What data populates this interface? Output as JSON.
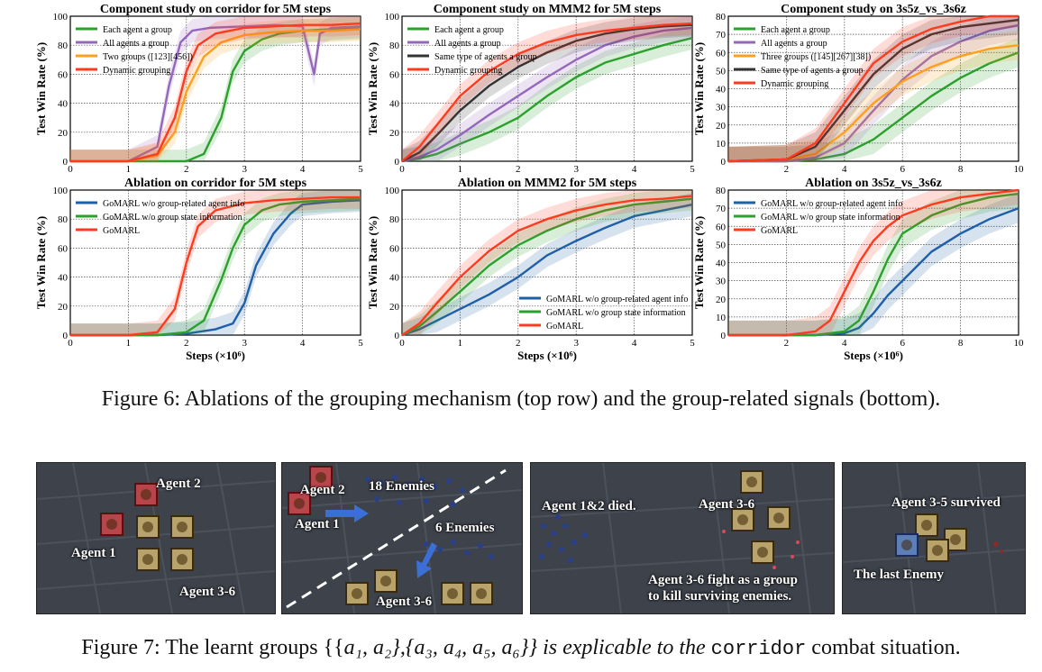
{
  "figure6": {
    "caption": "Figure 6: Ablations of the grouping mechanism (top row) and the group-related signals (bottom).",
    "xlabel": "Steps (×10⁶)",
    "ylabel": "Test Win Rate (%)"
  },
  "chart_data": [
    {
      "type": "line",
      "title": "Component study on corridor for 5M steps",
      "xlabel": "Steps (×10⁶)",
      "ylabel": "Test Win Rate (%)",
      "xlim": [
        0,
        5
      ],
      "ylim": [
        0,
        100
      ],
      "xticks": [
        "0",
        "1",
        "2",
        "3",
        "4",
        "5"
      ],
      "yticks": [
        "0",
        "20",
        "40",
        "60",
        "80",
        "100"
      ],
      "grid": true,
      "legend": "top-left",
      "series": [
        {
          "name": "Each agent a group",
          "color": "#2ca02c",
          "x": [
            0,
            0.5,
            1,
            1.5,
            2,
            2.3,
            2.6,
            2.8,
            3,
            3.3,
            3.6,
            4,
            4.5,
            5
          ],
          "values": [
            0,
            0,
            0,
            0,
            0,
            5,
            30,
            62,
            76,
            84,
            88,
            90,
            91,
            92
          ]
        },
        {
          "name": "All agents a group",
          "color": "#9467bd",
          "x": [
            0,
            0.5,
            1,
            1.5,
            1.7,
            1.9,
            2.1,
            2.4,
            3,
            3.5,
            4,
            4.2,
            4.3,
            4.5,
            5
          ],
          "values": [
            0,
            0,
            0,
            10,
            52,
            82,
            90,
            92,
            93,
            94,
            93,
            60,
            88,
            92,
            93
          ]
        },
        {
          "name": "Two groups ([123][456])",
          "color": "#ff9f1c",
          "x": [
            0,
            0.5,
            1,
            1.5,
            1.8,
            2,
            2.3,
            2.6,
            3,
            3.5,
            4,
            4.5,
            5
          ],
          "values": [
            0,
            0,
            0,
            4,
            20,
            48,
            72,
            82,
            87,
            89,
            90,
            90,
            91
          ]
        },
        {
          "name": "Dynamic grouping",
          "color": "#ff3b1f",
          "x": [
            0,
            0.5,
            1,
            1.5,
            1.8,
            2,
            2.2,
            2.5,
            3,
            3.5,
            4,
            4.5,
            5
          ],
          "values": [
            0,
            0,
            0,
            5,
            30,
            62,
            80,
            88,
            92,
            93,
            94,
            94,
            95
          ]
        }
      ]
    },
    {
      "type": "line",
      "title": "Component study on MMM2 for 5M steps",
      "xlabel": "Steps (×10⁶)",
      "ylabel": "Test Win Rate (%)",
      "xlim": [
        0,
        5
      ],
      "ylim": [
        0,
        100
      ],
      "xticks": [
        "0",
        "1",
        "2",
        "3",
        "4",
        "5"
      ],
      "yticks": [
        "0",
        "20",
        "40",
        "60",
        "80",
        "100"
      ],
      "grid": true,
      "legend": "top-left",
      "series": [
        {
          "name": "Each agent a group",
          "color": "#2ca02c",
          "x": [
            0,
            0.3,
            0.6,
            1,
            1.5,
            2,
            2.5,
            3,
            3.5,
            4,
            4.5,
            5
          ],
          "values": [
            0,
            2,
            5,
            12,
            20,
            30,
            45,
            58,
            68,
            74,
            80,
            85
          ]
        },
        {
          "name": "All agents a group",
          "color": "#9467bd",
          "x": [
            0,
            0.3,
            0.6,
            1,
            1.5,
            2,
            2.5,
            3,
            3.5,
            4,
            4.5,
            5
          ],
          "values": [
            0,
            3,
            8,
            18,
            32,
            45,
            58,
            70,
            80,
            86,
            90,
            92
          ]
        },
        {
          "name": "Same type of agents a group",
          "color": "#333333",
          "x": [
            0,
            0.3,
            0.6,
            1,
            1.5,
            2,
            2.5,
            3,
            3.5,
            4,
            4.5,
            5
          ],
          "values": [
            0,
            6,
            18,
            35,
            52,
            65,
            75,
            83,
            88,
            91,
            93,
            94
          ]
        },
        {
          "name": "Dynamic grouping",
          "color": "#ff3b1f",
          "x": [
            0,
            0.3,
            0.6,
            1,
            1.5,
            2,
            2.5,
            3,
            3.5,
            4,
            4.5,
            5
          ],
          "values": [
            0,
            10,
            25,
            45,
            62,
            74,
            82,
            87,
            90,
            92,
            94,
            95
          ]
        }
      ]
    },
    {
      "type": "line",
      "title": "Component study on 3s5z_vs_3s6z",
      "xlabel": "Steps (×10⁶)",
      "ylabel": "Test Win Rate (%)",
      "xlim": [
        0,
        10
      ],
      "ylim": [
        0,
        80
      ],
      "xticks": [
        "",
        "2",
        "4",
        "6",
        "8",
        "10"
      ],
      "yticks": [
        "0",
        "10",
        "20",
        "30",
        "40",
        "50",
        "60",
        "70",
        "80"
      ],
      "grid": true,
      "legend": "top-left",
      "series": [
        {
          "name": "Each agent a group",
          "color": "#2ca02c",
          "x": [
            0,
            2,
            3,
            4,
            5,
            6,
            7,
            8,
            9,
            10
          ],
          "values": [
            0,
            0,
            1,
            4,
            12,
            24,
            36,
            46,
            54,
            60
          ]
        },
        {
          "name": "All agents a group",
          "color": "#9467bd",
          "x": [
            0,
            2,
            3,
            4,
            5,
            6,
            7,
            8,
            9,
            10
          ],
          "values": [
            0,
            0,
            2,
            10,
            28,
            45,
            58,
            66,
            72,
            75
          ]
        },
        {
          "name": "Three groups ([145][267][38])",
          "color": "#ff9f1c",
          "x": [
            0,
            2,
            3,
            4,
            5,
            6,
            7,
            8,
            9,
            10
          ],
          "values": [
            0,
            1,
            4,
            16,
            32,
            44,
            52,
            58,
            62,
            64
          ]
        },
        {
          "name": "Same type of agents a group",
          "color": "#333333",
          "x": [
            0,
            2,
            3,
            4,
            5,
            6,
            7,
            8,
            9,
            10
          ],
          "values": [
            0,
            1,
            8,
            28,
            48,
            62,
            70,
            74,
            76,
            78
          ]
        },
        {
          "name": "Dynamic grouping",
          "color": "#ff3b1f",
          "x": [
            0,
            2,
            3,
            4,
            5,
            6,
            7,
            8,
            9,
            10
          ],
          "values": [
            0,
            1,
            10,
            32,
            54,
            66,
            73,
            77,
            80,
            82
          ]
        }
      ]
    },
    {
      "type": "line",
      "title": "Ablation on corridor for 5M steps",
      "xlabel": "Steps (×10⁶)",
      "ylabel": "Test Win Rate (%)",
      "xlim": [
        0,
        5
      ],
      "ylim": [
        0,
        100
      ],
      "xticks": [
        "0",
        "1",
        "2",
        "3",
        "4",
        "5"
      ],
      "yticks": [
        "0",
        "20",
        "40",
        "60",
        "80",
        "100"
      ],
      "grid": true,
      "legend": "top-left",
      "series": [
        {
          "name": "GoMARL w/o group-related agent info",
          "color": "#1f5fa8",
          "x": [
            0,
            1,
            1.5,
            2,
            2.5,
            2.8,
            3,
            3.2,
            3.5,
            3.8,
            4,
            4.5,
            5
          ],
          "values": [
            0,
            0,
            0,
            1,
            4,
            8,
            22,
            48,
            70,
            84,
            90,
            92,
            93
          ]
        },
        {
          "name": "GoMARL w/o group state information",
          "color": "#2ca02c",
          "x": [
            0,
            1,
            1.5,
            2,
            2.3,
            2.6,
            2.8,
            3,
            3.3,
            3.6,
            4,
            4.5,
            5
          ],
          "values": [
            0,
            0,
            0,
            2,
            10,
            38,
            60,
            76,
            86,
            90,
            92,
            93,
            94
          ]
        },
        {
          "name": "GoMARL",
          "color": "#ff3b1f",
          "x": [
            0,
            1,
            1.5,
            1.8,
            2,
            2.2,
            2.5,
            3,
            3.5,
            4,
            4.5,
            5
          ],
          "values": [
            0,
            0,
            2,
            18,
            50,
            75,
            86,
            91,
            93,
            94,
            95,
            95
          ]
        }
      ]
    },
    {
      "type": "line",
      "title": "Ablation on MMM2 for 5M steps",
      "xlabel": "Steps (×10⁶)",
      "ylabel": "Test Win Rate (%)",
      "xlim": [
        0,
        5
      ],
      "ylim": [
        0,
        100
      ],
      "xticks": [
        "0",
        "1",
        "2",
        "3",
        "4",
        "5"
      ],
      "yticks": [
        "0",
        "20",
        "40",
        "60",
        "80",
        "100"
      ],
      "grid": true,
      "legend": "bottom-right",
      "series": [
        {
          "name": "GoMARL w/o group-related agent info",
          "color": "#1f5fa8",
          "x": [
            0,
            0.3,
            0.6,
            1,
            1.5,
            2,
            2.5,
            3,
            3.5,
            4,
            4.5,
            5
          ],
          "values": [
            0,
            4,
            10,
            18,
            28,
            40,
            55,
            65,
            74,
            82,
            86,
            90
          ]
        },
        {
          "name": "GoMARL w/o group state information",
          "color": "#2ca02c",
          "x": [
            0,
            0.3,
            0.6,
            1,
            1.5,
            2,
            2.5,
            3,
            3.5,
            4,
            4.5,
            5
          ],
          "values": [
            0,
            6,
            16,
            30,
            48,
            62,
            72,
            80,
            86,
            90,
            92,
            94
          ]
        },
        {
          "name": "GoMARL",
          "color": "#ff3b1f",
          "x": [
            0,
            0.3,
            0.6,
            1,
            1.5,
            2,
            2.5,
            3,
            3.5,
            4,
            4.5,
            5
          ],
          "values": [
            0,
            8,
            22,
            40,
            58,
            72,
            80,
            86,
            90,
            93,
            94,
            96
          ]
        }
      ]
    },
    {
      "type": "line",
      "title": "Ablation on 3s5z_vs_3s6z",
      "xlabel": "Steps (×10⁶)",
      "ylabel": "Test Win Rate (%)",
      "xlim": [
        0,
        10
      ],
      "ylim": [
        0,
        80
      ],
      "xticks": [
        "",
        "2",
        "4",
        "6",
        "8",
        "10"
      ],
      "yticks": [
        "0",
        "10",
        "20",
        "30",
        "40",
        "50",
        "60",
        "70",
        "80"
      ],
      "grid": true,
      "legend": "top-left",
      "series": [
        {
          "name": "GoMARL w/o group-related agent info",
          "color": "#1f5fa8",
          "x": [
            0,
            2,
            3,
            4,
            4.5,
            5,
            5.5,
            6,
            6.5,
            7,
            8,
            9,
            10
          ],
          "values": [
            0,
            0,
            0,
            1,
            4,
            12,
            22,
            30,
            38,
            46,
            56,
            64,
            70
          ]
        },
        {
          "name": "GoMARL w/o group state information",
          "color": "#2ca02c",
          "x": [
            0,
            2,
            3,
            4,
            4.5,
            5,
            5.5,
            6,
            7,
            8,
            9,
            10
          ],
          "values": [
            0,
            0,
            0,
            2,
            8,
            24,
            42,
            56,
            66,
            72,
            76,
            78
          ]
        },
        {
          "name": "GoMARL",
          "color": "#ff3b1f",
          "x": [
            0,
            2,
            3,
            3.5,
            4,
            4.5,
            5,
            5.5,
            6,
            7,
            8,
            9,
            10
          ],
          "values": [
            0,
            0,
            2,
            8,
            24,
            40,
            52,
            60,
            66,
            72,
            76,
            78,
            80
          ]
        }
      ]
    }
  ],
  "figure7": {
    "caption_before": "Figure 7: The learnt groups {{",
    "caption_math": "a₁, a₂},{a₃, a₄, a₅, a₆}} is explicable to the ",
    "caption_code": "corridor",
    "caption_after": " combat situation.",
    "panel1": {
      "agent1": "Agent 1",
      "agent2": "Agent 2",
      "agent36": "Agent 3-6"
    },
    "panel2": {
      "agent2": "Agent 2",
      "agent1": "Agent 1",
      "enemies18": "18 Enemies",
      "enemies6": "6 Enemies",
      "agent36": "Agent 3-6"
    },
    "panel3": {
      "died": "Agent 1&2 died.",
      "agent36": "Agent 3-6",
      "fight1": "Agent 3-6 fight as a group",
      "fight2": "to kill surviving enemies."
    },
    "panel4": {
      "survived": "Agent 3-5 survived",
      "last": "The last Enemy"
    }
  }
}
